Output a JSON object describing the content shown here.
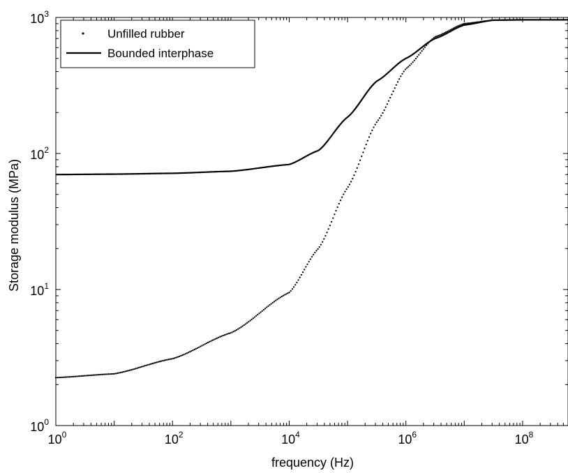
{
  "chart_data": {
    "type": "line",
    "title": "",
    "xlabel": "frequency (Hz)",
    "ylabel": "Storage modulus (MPa)",
    "x_scale": "log",
    "y_scale": "log",
    "xlim": [
      1,
      600000000
    ],
    "ylim": [
      1,
      1000
    ],
    "grid": false,
    "legend_position": "top-left",
    "x_ticks": [
      {
        "base": "10",
        "exp": "0",
        "value": 1
      },
      {
        "base": "10",
        "exp": "2",
        "value": 100
      },
      {
        "base": "10",
        "exp": "4",
        "value": 10000
      },
      {
        "base": "10",
        "exp": "6",
        "value": 1000000
      },
      {
        "base": "10",
        "exp": "8",
        "value": 100000000
      }
    ],
    "y_ticks": [
      {
        "base": "10",
        "exp": "0",
        "value": 1
      },
      {
        "base": "10",
        "exp": "1",
        "value": 10
      },
      {
        "base": "10",
        "exp": "2",
        "value": 100
      },
      {
        "base": "10",
        "exp": "3",
        "value": 1000
      }
    ],
    "x": [
      1,
      10,
      100,
      1000,
      10000,
      31623,
      100000,
      316228,
      1000000,
      3162278,
      10000000,
      31622777,
      100000000,
      316227766,
      600000000
    ],
    "series": [
      {
        "name": "Unfilled rubber",
        "style": "dotted",
        "color": "#000000",
        "values": [
          2.25,
          2.4,
          3.1,
          4.8,
          9.5,
          20,
          56,
          170,
          420,
          720,
          900,
          955,
          960,
          960,
          960
        ]
      },
      {
        "name": "Bounded interphase",
        "style": "solid",
        "color": "#000000",
        "values": [
          70,
          70.5,
          71.5,
          74,
          83,
          105,
          185,
          340,
          500,
          700,
          880,
          955,
          960,
          960,
          960
        ]
      }
    ]
  }
}
